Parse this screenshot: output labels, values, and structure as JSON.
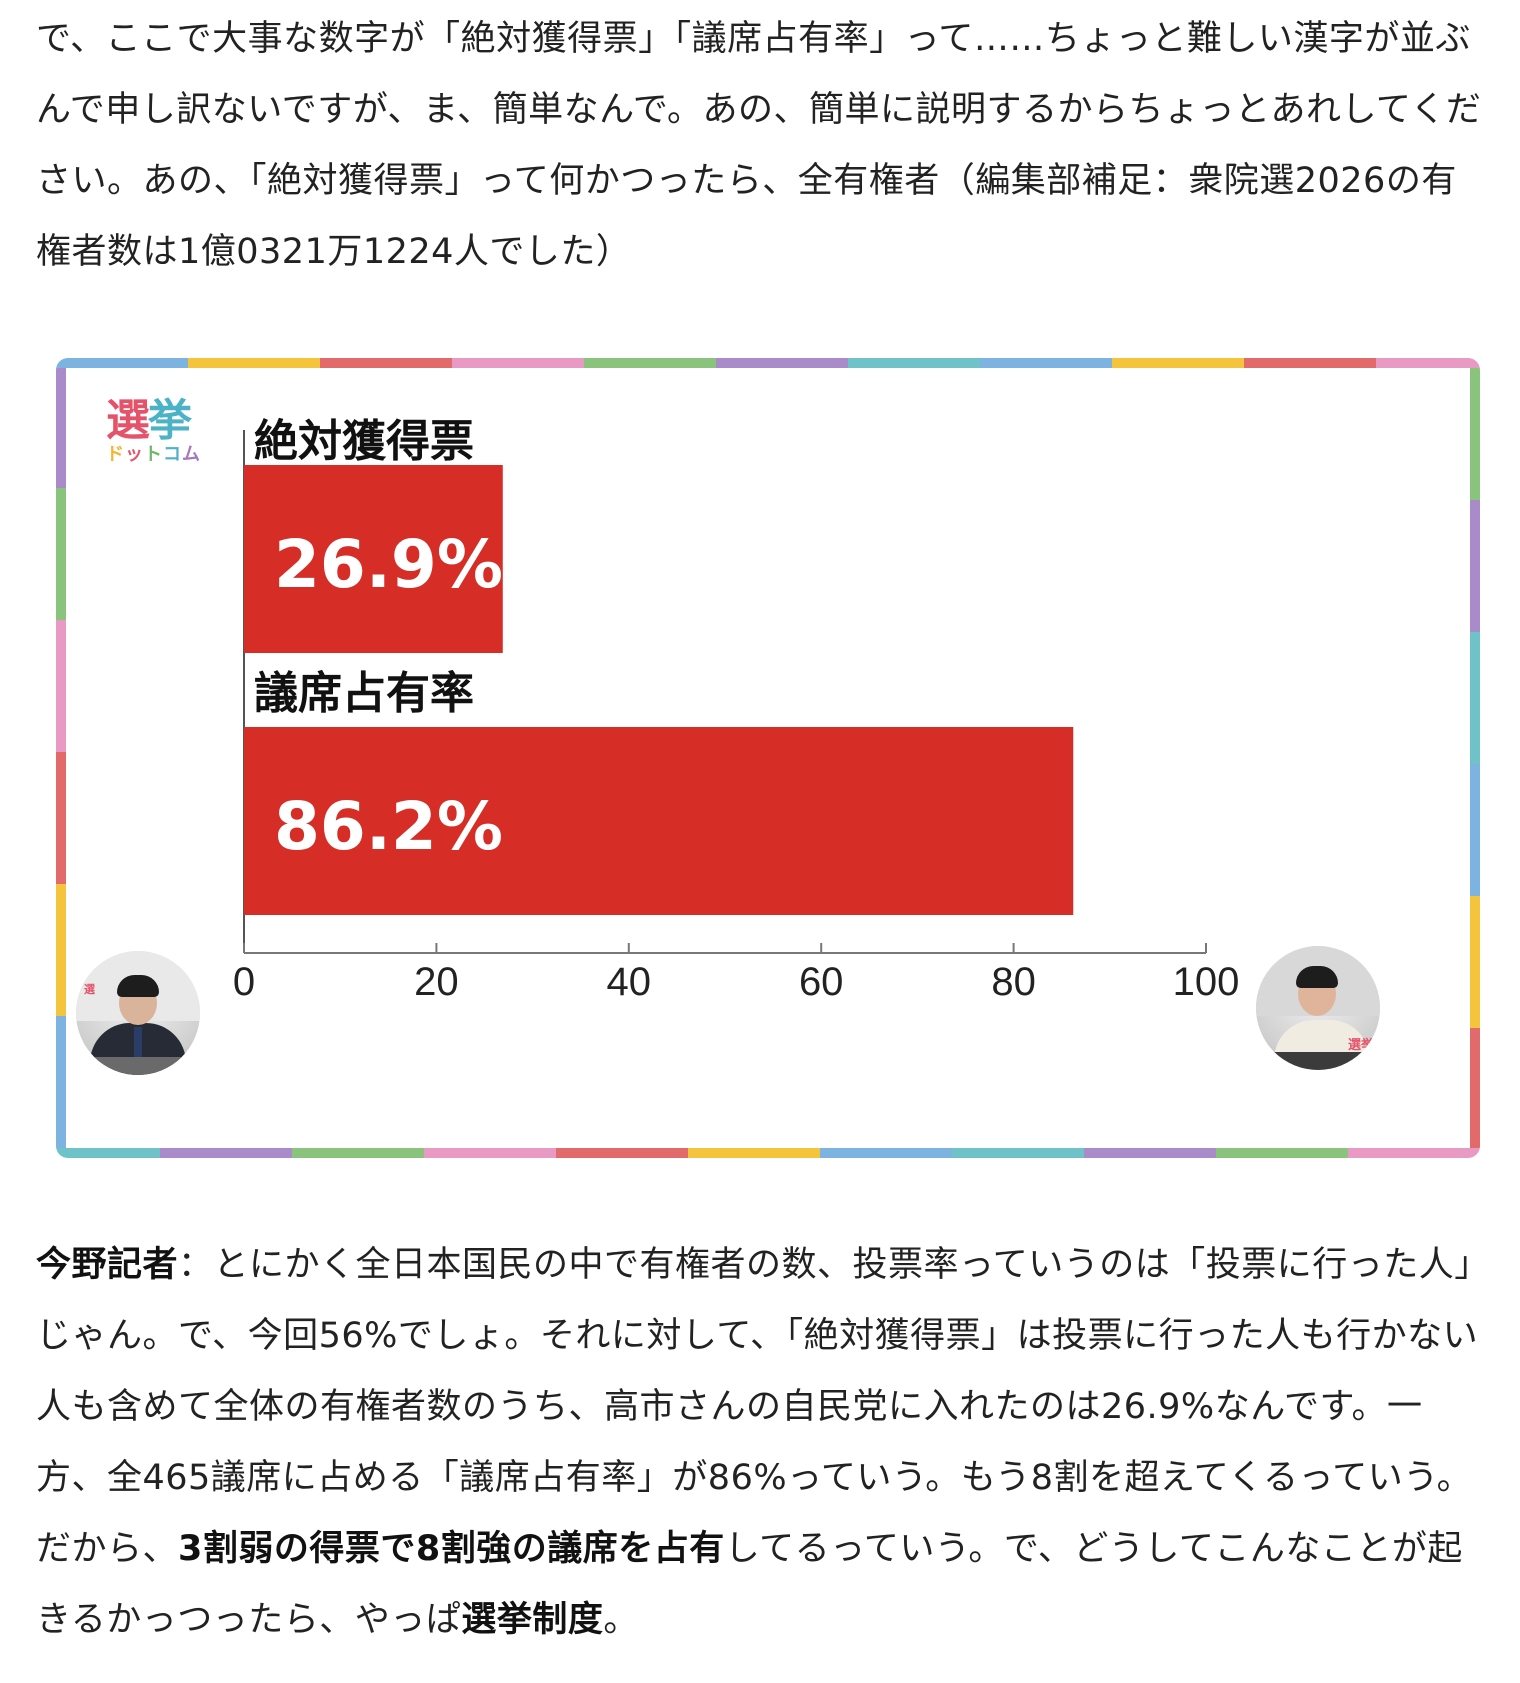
{
  "intro_paragraph": "で、ここで大事な数字が「絶対獲得票」「議席占有率」って……ちょっと難しい漢字が並ぶんで申し訳ないですが、ま、簡単なんで。あの、簡単に説明するからちょっとあれしてください。あの、「絶対獲得票」って何かつったら、全有権者（編集部補足：衆院選2026の有権者数は1億0321万1224人でした）",
  "figure": {
    "logo_main_1": "選",
    "logo_main_2": "挙",
    "logo_sub": [
      "ド",
      "ッ",
      "ト",
      "コ",
      "ム"
    ],
    "frame_colors": [
      "#7cb3e0",
      "#f4c53c",
      "#e26a6a",
      "#e89ac4",
      "#8ac47c",
      "#a98bc9",
      "#6fc2c8"
    ],
    "bar_color": "#d62d27",
    "avatar_left": {
      "name": "left-speaker"
    },
    "avatar_right": {
      "name": "right-speaker",
      "sign": "選挙"
    }
  },
  "chart_data": {
    "type": "bar",
    "orientation": "horizontal",
    "categories": [
      "絶対獲得票",
      "議席占有率"
    ],
    "values": [
      26.9,
      86.2
    ],
    "value_labels": [
      "26.9%",
      "86.2%"
    ],
    "xlim": [
      0,
      100
    ],
    "x_ticks": [
      0,
      20,
      40,
      60,
      80,
      100
    ],
    "grid": false,
    "legend": "none"
  },
  "dialogue": {
    "speaker": "今野記者",
    "separator": "：",
    "text_1": "とにかく全日本国民の中で有権者の数、投票率っていうのは「投票に行った人」じゃん。で、今回56%でしょ。それに対して、「絶対獲得票」は投票に行った人も行かない人も含めて全体の有権者数のうち、高市さんの自民党に入れたのは26.9%なんです。一方、全465議席に占める「議席占有率」が86%っていう。もう8割を超えてくるっていう。だから、",
    "bold_1": "3割弱の得票で8割強の議席を占有",
    "text_2": "してるっていう。で、どうしてこんなことが起きるかっつったら、やっぱ",
    "bold_2": "選挙制度",
    "text_3": "。"
  }
}
